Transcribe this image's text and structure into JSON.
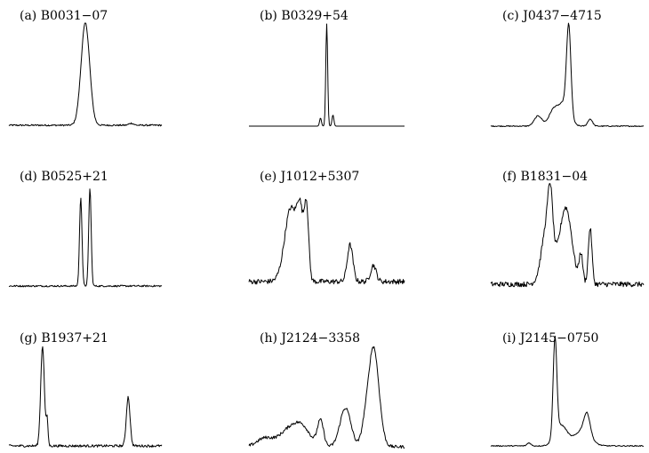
{
  "chart_data": [
    {
      "type": "line",
      "title": "(a) B0031−07",
      "components": [
        {
          "c": 0.5,
          "w": 0.028,
          "a": 1.0
        },
        {
          "c": 0.8,
          "w": 0.015,
          "a": 0.02
        }
      ],
      "noise": 0.008
    },
    {
      "type": "line",
      "title": "(b) B0329+54",
      "components": [
        {
          "c": 0.5,
          "w": 0.006,
          "a": 1.0
        },
        {
          "c": 0.46,
          "w": 0.006,
          "a": 0.08
        },
        {
          "c": 0.54,
          "w": 0.006,
          "a": 0.11
        }
      ],
      "noise": 0.0
    },
    {
      "type": "line",
      "title": "(c) J0437−4715",
      "components": [
        {
          "c": 0.51,
          "w": 0.014,
          "a": 0.85
        },
        {
          "c": 0.48,
          "w": 0.035,
          "a": 0.22
        },
        {
          "c": 0.41,
          "w": 0.03,
          "a": 0.15
        },
        {
          "c": 0.31,
          "w": 0.025,
          "a": 0.1
        },
        {
          "c": 0.65,
          "w": 0.015,
          "a": 0.07
        }
      ],
      "noise": 0.005
    },
    {
      "type": "line",
      "title": "(d) B0525+21",
      "components": [
        {
          "c": 0.47,
          "w": 0.008,
          "a": 0.87
        },
        {
          "c": 0.53,
          "w": 0.008,
          "a": 0.96
        }
      ],
      "noise": 0.008
    },
    {
      "type": "line",
      "title": "(e) J1012+5307",
      "components": [
        {
          "c": 0.27,
          "w": 0.04,
          "a": 0.72
        },
        {
          "c": 0.33,
          "w": 0.02,
          "a": 0.55
        },
        {
          "c": 0.37,
          "w": 0.014,
          "a": 0.7
        },
        {
          "c": 0.65,
          "w": 0.018,
          "a": 0.36
        },
        {
          "c": 0.8,
          "w": 0.018,
          "a": 0.16
        }
      ],
      "noise": 0.025
    },
    {
      "type": "line",
      "title": "(f) B1831−04",
      "components": [
        {
          "c": 0.37,
          "w": 0.035,
          "a": 0.6
        },
        {
          "c": 0.39,
          "w": 0.015,
          "a": 0.45
        },
        {
          "c": 0.49,
          "w": 0.04,
          "a": 0.75
        },
        {
          "c": 0.59,
          "w": 0.012,
          "a": 0.28
        },
        {
          "c": 0.65,
          "w": 0.012,
          "a": 0.55
        }
      ],
      "noise": 0.025
    },
    {
      "type": "line",
      "title": "(g) B1937+21",
      "components": [
        {
          "c": 0.22,
          "w": 0.012,
          "a": 0.98
        },
        {
          "c": 0.25,
          "w": 0.006,
          "a": 0.25
        },
        {
          "c": 0.78,
          "w": 0.012,
          "a": 0.48
        }
      ],
      "noise": 0.012
    },
    {
      "type": "line",
      "title": "(h) J2124−3358",
      "components": [
        {
          "c": 0.1,
          "w": 0.05,
          "a": 0.08
        },
        {
          "c": 0.27,
          "w": 0.07,
          "a": 0.18
        },
        {
          "c": 0.35,
          "w": 0.05,
          "a": 0.12
        },
        {
          "c": 0.46,
          "w": 0.02,
          "a": 0.25
        },
        {
          "c": 0.62,
          "w": 0.035,
          "a": 0.38
        },
        {
          "c": 0.74,
          "w": 0.02,
          "a": 0.1
        },
        {
          "c": 0.8,
          "w": 0.035,
          "a": 0.98
        }
      ],
      "noise": 0.015
    },
    {
      "type": "line",
      "title": "(i) J2145−0750",
      "components": [
        {
          "c": 0.42,
          "w": 0.012,
          "a": 0.95
        },
        {
          "c": 0.46,
          "w": 0.04,
          "a": 0.2
        },
        {
          "c": 0.6,
          "w": 0.05,
          "a": 0.15
        },
        {
          "c": 0.63,
          "w": 0.02,
          "a": 0.2
        },
        {
          "c": 0.25,
          "w": 0.012,
          "a": 0.03
        }
      ],
      "noise": 0.005
    }
  ]
}
